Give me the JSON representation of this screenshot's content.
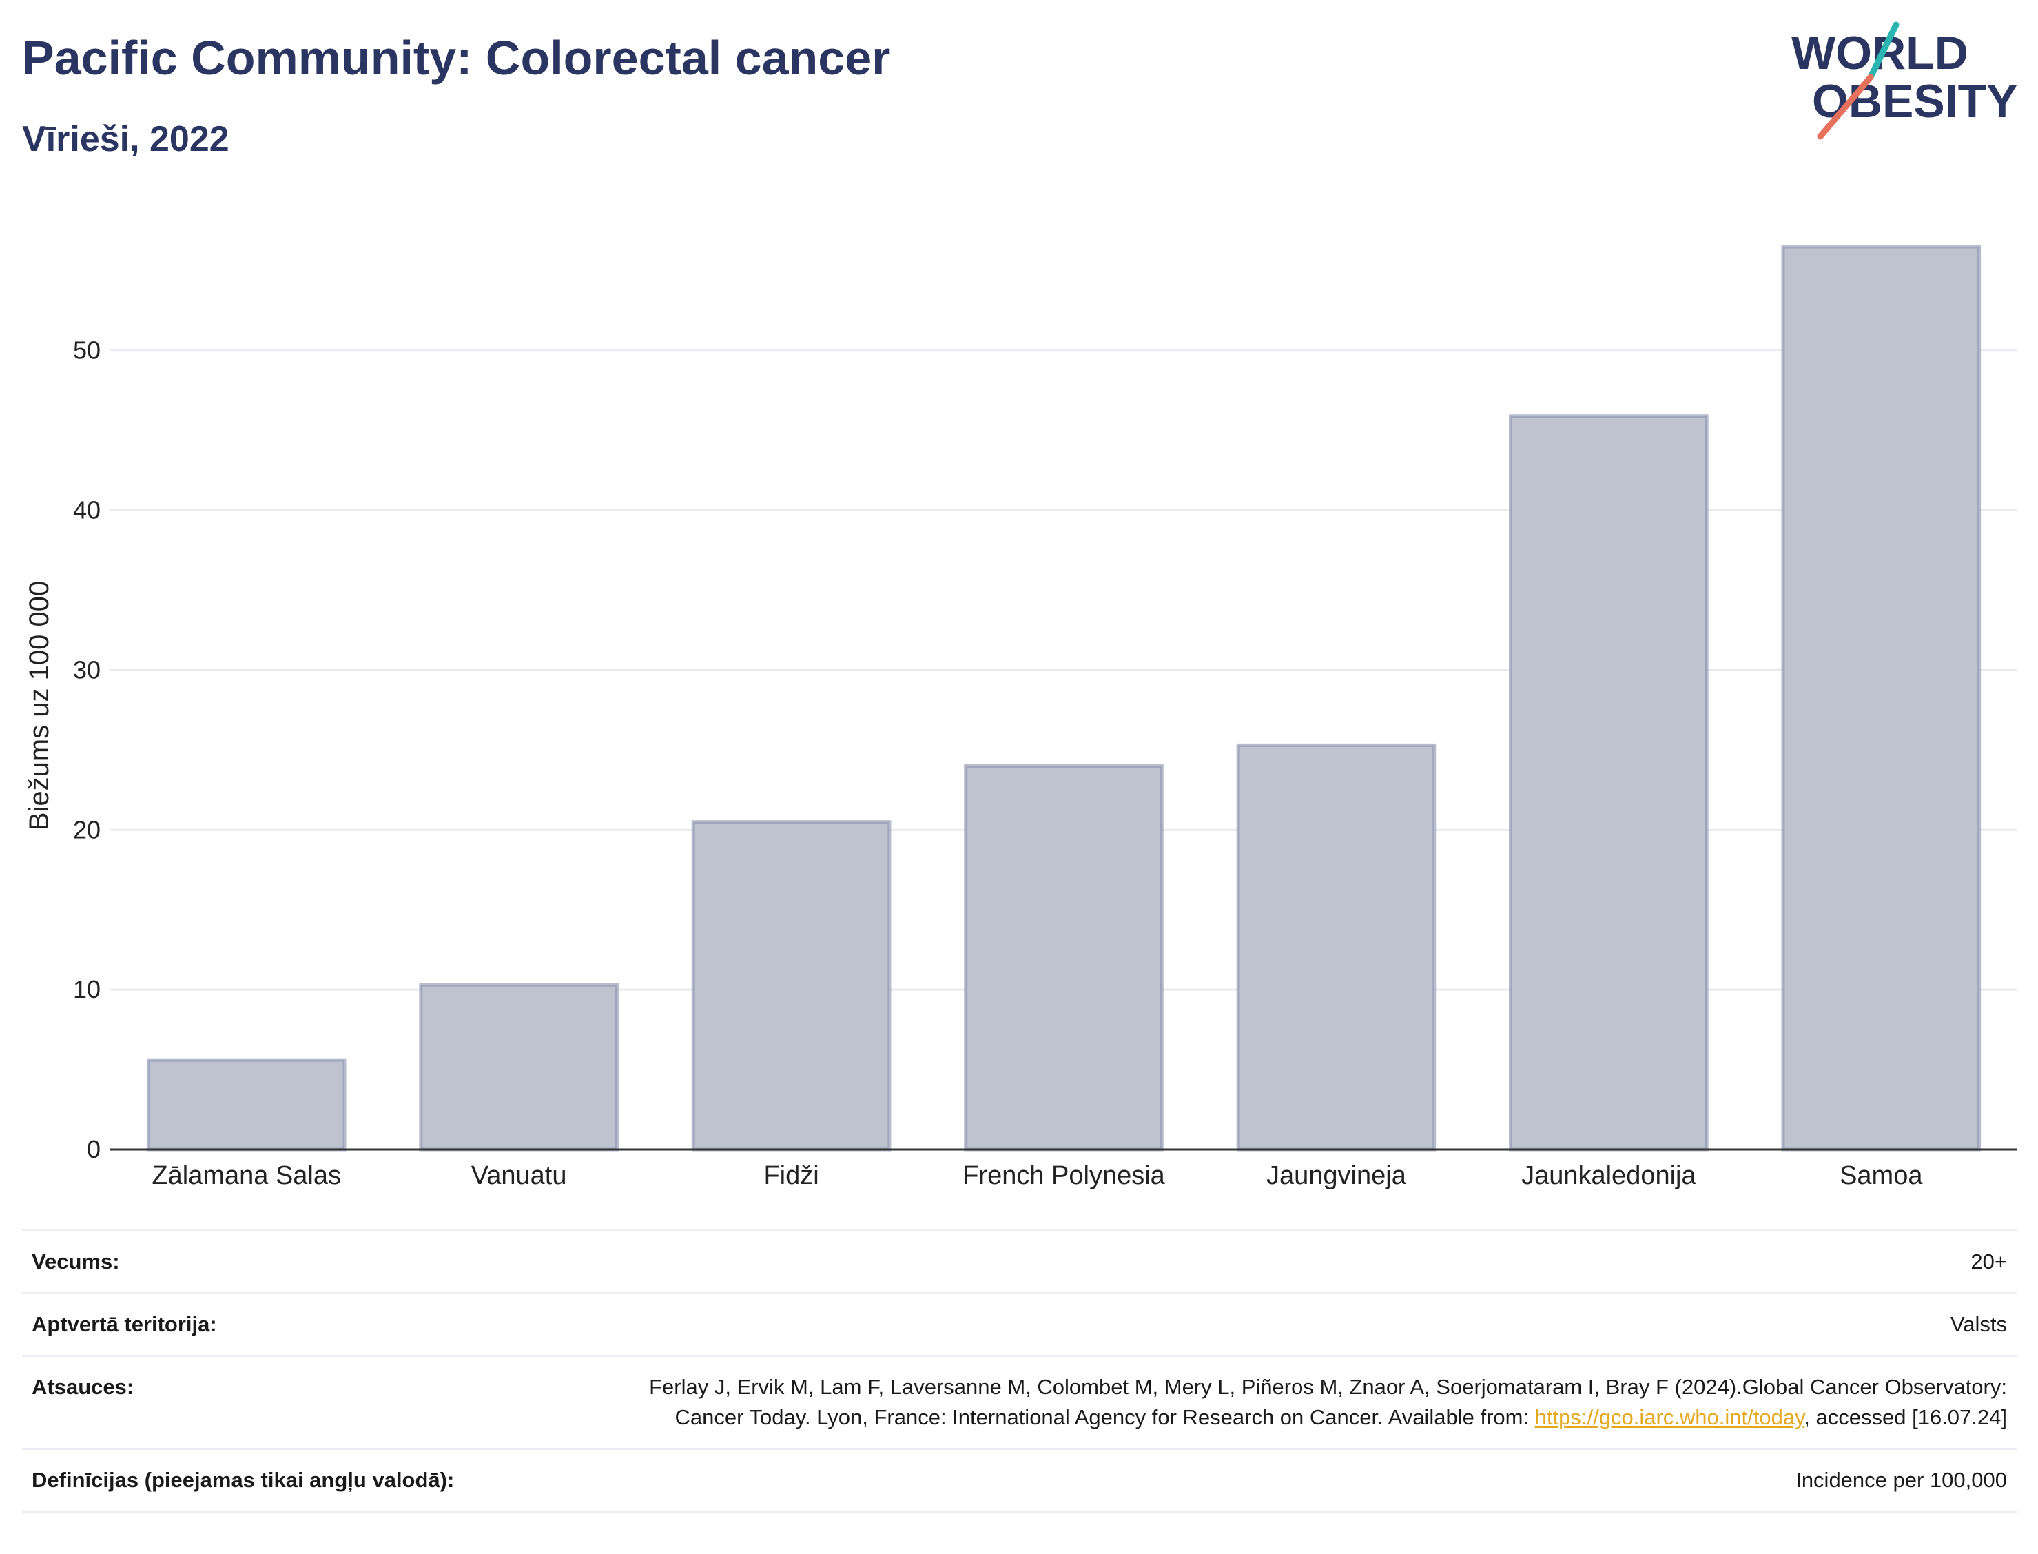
{
  "header": {
    "title": "Pacific Community: Colorectal cancer",
    "subtitle": "Vīrieši, 2022"
  },
  "logo": {
    "line1": "WORLD",
    "line2": "OBESITY",
    "colors": {
      "text": "#2b3561",
      "accent_teal": "#2bb5b0",
      "accent_red": "#e8715e"
    }
  },
  "chart_data": {
    "type": "bar",
    "categories": [
      "Zālamana Salas",
      "Vanuatu",
      "Fidži",
      "French Polynesia",
      "Jaungvineja",
      "Jaunkaledonija",
      "Samoa"
    ],
    "values": [
      5.6,
      10.3,
      20.5,
      24.0,
      25.3,
      45.9,
      56.5
    ],
    "xlabel": "",
    "ylabel": "Biežums uz 100 000",
    "ylim": [
      0,
      59
    ],
    "yticks": [
      0,
      10,
      20,
      30,
      40,
      50
    ],
    "grid": true,
    "colors": {
      "bar_fill": "#bfc3cf",
      "bar_stroke": "#8b91ab",
      "grid": "#e8eaf0",
      "axis": "#333333"
    }
  },
  "info": {
    "rows": [
      {
        "key": "Vecums:",
        "value": "20+"
      },
      {
        "key": "Aptvertā teritorija:",
        "value": "Valsts"
      },
      {
        "key": "Atsauces:",
        "value_before": "Ferlay J, Ervik M, Lam F, Laversanne M, Colombet M, Mery L, Piñeros M, Znaor A, Soerjomataram I, Bray F (2024).Global Cancer Observatory: Cancer Today. Lyon, France: International Agency for Research on Cancer. Available from: ",
        "link": "https://gco.iarc.who.int/today",
        "value_after": ", accessed [16.07.24]"
      },
      {
        "key": "Definīcijas (pieejamas tikai angļu valodā):",
        "value": "Incidence per 100,000"
      }
    ]
  }
}
